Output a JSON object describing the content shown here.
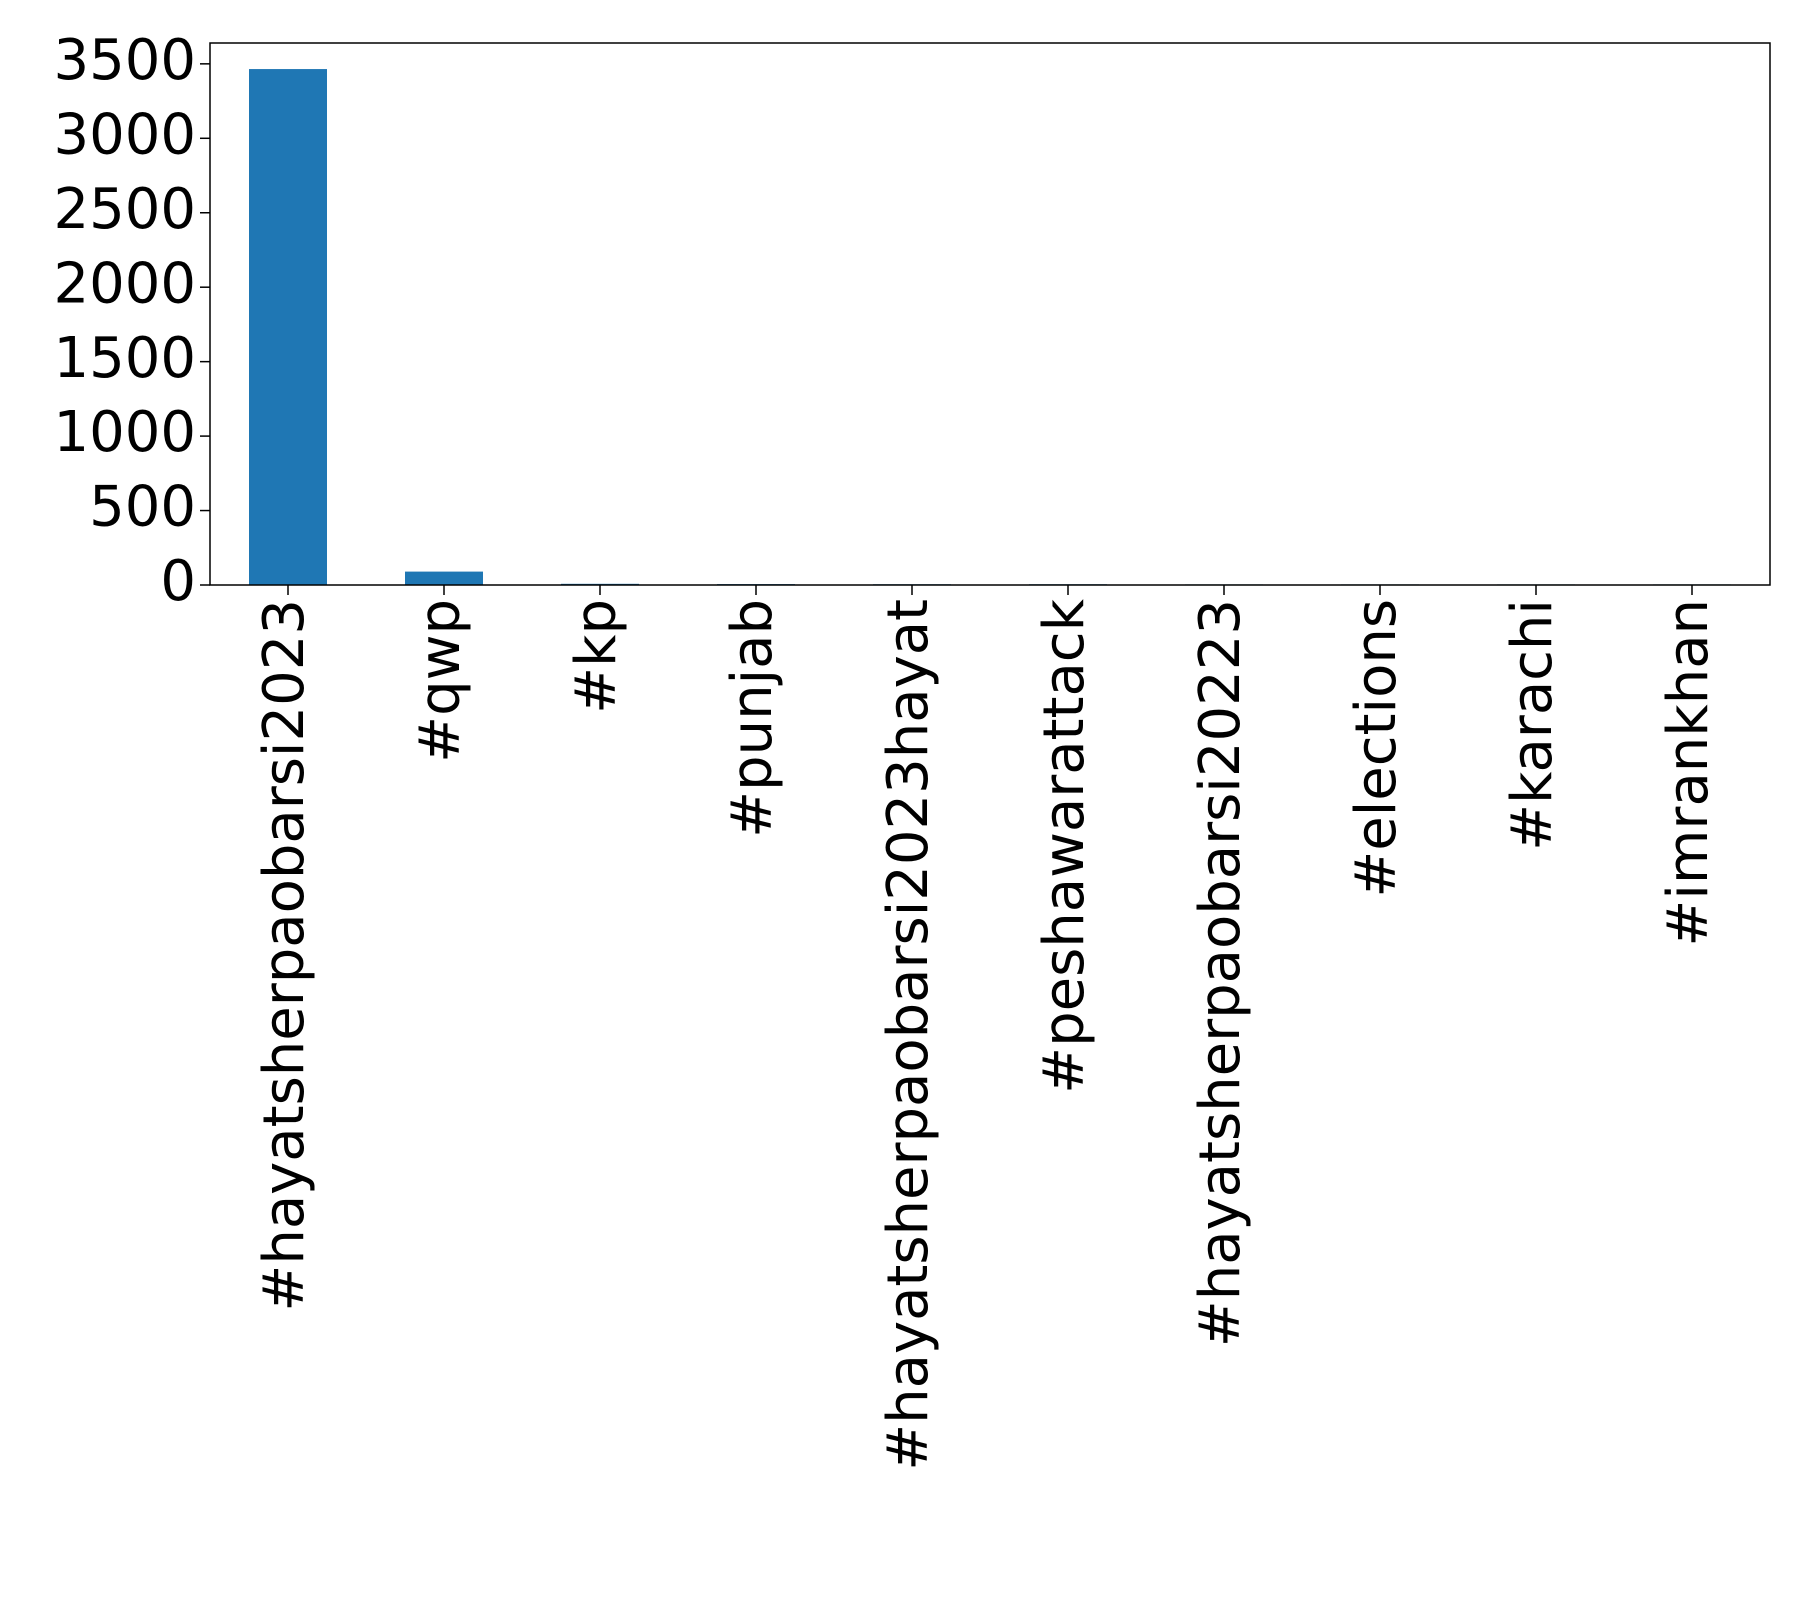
{
  "chart_data": {
    "type": "bar",
    "categories": [
      "#hayatsherpaobarsi2023",
      "#qwp",
      "#kp",
      "#punjab",
      "#hayatsherpaobarsi2023hayat",
      "#peshawarattack",
      "#hayatsherpaobarsi20223",
      "#elections",
      "#karachi",
      "#imrankhan"
    ],
    "values": [
      3465,
      90,
      8,
      6,
      5,
      5,
      4,
      4,
      4,
      4
    ],
    "title": "",
    "xlabel": "",
    "ylabel": "",
    "ylim": [
      0,
      3640
    ],
    "yticks": [
      "0",
      "500",
      "1000",
      "1500",
      "2000",
      "2500",
      "3000",
      "3500"
    ],
    "bar_color": "#1f77b4",
    "grid": false,
    "legend": "none"
  }
}
